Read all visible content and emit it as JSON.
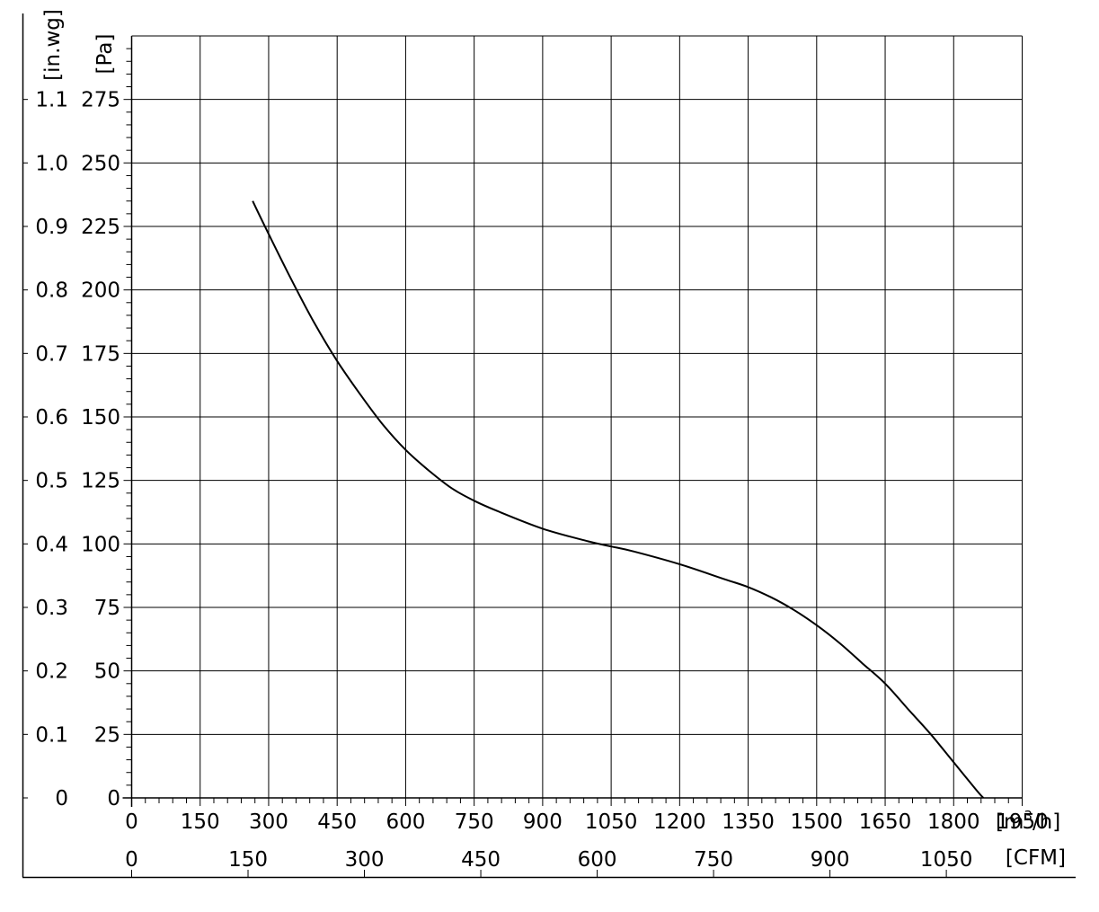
{
  "chart_data": {
    "type": "line",
    "title": "",
    "x_primary": {
      "unit_label": "[m³/h]",
      "unit_text": "[m",
      "unit_sup": "3",
      "unit_tail": "/h]",
      "ticks": [
        0,
        150,
        300,
        450,
        600,
        750,
        900,
        1050,
        1200,
        1350,
        1500,
        1650,
        1800,
        1950
      ],
      "range": [
        0,
        1950
      ]
    },
    "x_secondary": {
      "unit_label": "[CFM]",
      "ticks": [
        0,
        150,
        300,
        450,
        600,
        750,
        900,
        1050
      ]
    },
    "y_primary": {
      "unit_label": "[Pa]",
      "ticks": [
        0,
        25,
        50,
        75,
        100,
        125,
        150,
        175,
        200,
        225,
        250,
        275
      ],
      "range": [
        0,
        300
      ]
    },
    "y_secondary": {
      "unit_label": "[in.wg]",
      "ticks": [
        "0",
        "0.1",
        "0.2",
        "0.3",
        "0.4",
        "0.5",
        "0.6",
        "0.7",
        "0.8",
        "0.9",
        "1.0",
        "1.1"
      ]
    },
    "grid": true,
    "series": [
      {
        "x": [
          265,
          300,
          350,
          400,
          450,
          500,
          550,
          600,
          650,
          700,
          750,
          800,
          900,
          1000,
          1050,
          1100,
          1200,
          1300,
          1350,
          1400,
          1450,
          1500,
          1550,
          1600,
          1650,
          1700,
          1750,
          1800,
          1850,
          1865
        ],
        "y": [
          235,
          222,
          204,
          187,
          172,
          159,
          147,
          137,
          129,
          122,
          117,
          113,
          106,
          101,
          99,
          97,
          92,
          86,
          83,
          79,
          74,
          68,
          61,
          53,
          45,
          35,
          25,
          14,
          3,
          0
        ]
      }
    ]
  }
}
